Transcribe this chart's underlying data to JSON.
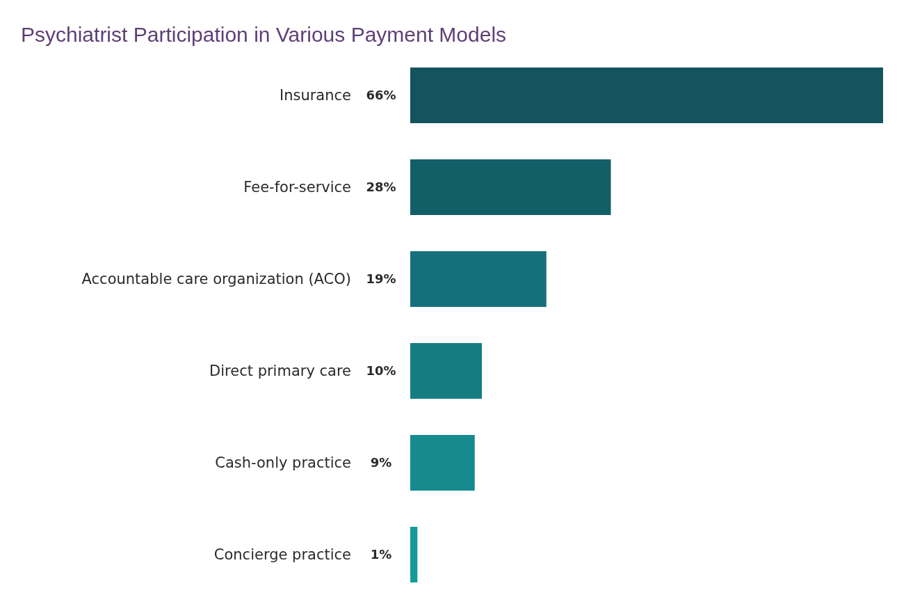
{
  "chart_data": {
    "type": "bar",
    "orientation": "horizontal",
    "title": "Psychiatrist Participation in Various Payment Models",
    "categories": [
      "Insurance",
      "Fee-for-service",
      "Accountable care organization (ACO)",
      "Direct primary care",
      "Cash-only practice",
      "Concierge practice"
    ],
    "values": [
      66,
      28,
      19,
      10,
      9,
      1
    ],
    "colors": [
      "#13545f",
      "#125f68",
      "#14707a",
      "#157d82",
      "#168b8d",
      "#179a9c"
    ],
    "value_labels": [
      "66%",
      "28%",
      "19%",
      "10%",
      "9%",
      "1%"
    ]
  }
}
